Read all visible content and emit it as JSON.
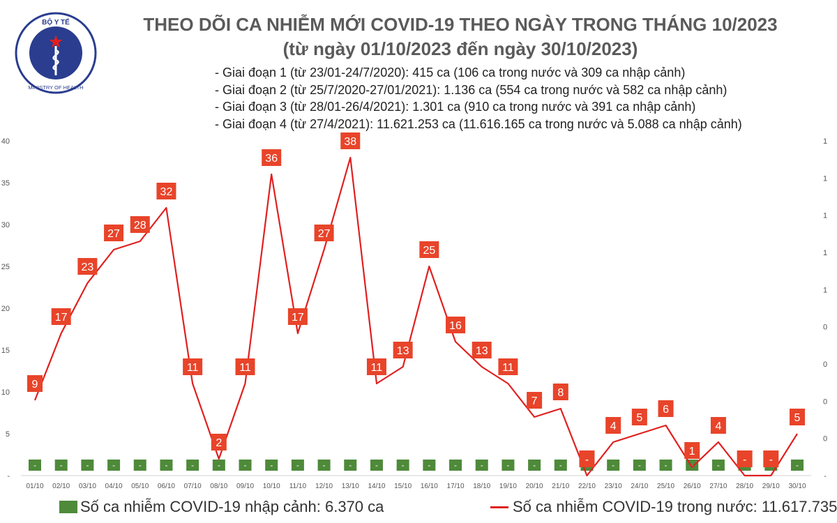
{
  "logo": {
    "top_text": "BỘ Y TẾ",
    "bottom_text": "MINISTRY OF HEALTH"
  },
  "header": {
    "title": "THEO DÕI CA NHIỄM MỚI COVID-19 THEO NGÀY TRONG THÁNG 10/2023",
    "subtitle": "(từ ngày 01/10/2023 đến ngày 30/10/2023)"
  },
  "stages": [
    "- Giai đoạn 1 (từ 23/01-24/7/2020): 415 ca (106 ca trong nước và 309 ca nhập cảnh)",
    "- Giai đoạn 2 (từ 25/7/2020-27/01/2021): 1.136 ca (554 ca trong nước và 582 ca nhập cảnh)",
    "- Giai đoạn 3 (từ 28/01-26/4/2021): 1.301 ca (910 ca trong nước và 391 ca nhập cảnh)",
    "- Giai đoạn 4 (từ 27/4/2021): 11.621.253 ca (11.616.165 ca trong nước và 5.088 ca nhập cảnh)"
  ],
  "legend": {
    "imported": "Số ca nhiễm COVID-19 nhập cảnh: 6.370 ca",
    "domestic": "Số ca nhiễm COVID-19 trong nước: 11.617.735 ca"
  },
  "colors": {
    "line": "#e02020",
    "label_bg": "#e8442a",
    "bar": "#4e8a3a",
    "axis_text": "#555555",
    "title": "#5a5a5a"
  },
  "chart_data": {
    "type": "line",
    "categories": [
      "01/10",
      "02/10",
      "03/10",
      "04/10",
      "05/10",
      "06/10",
      "07/10",
      "08/10",
      "09/10",
      "10/10",
      "11/10",
      "12/10",
      "13/10",
      "14/10",
      "15/10",
      "16/10",
      "17/10",
      "18/10",
      "19/10",
      "20/10",
      "21/10",
      "22/10",
      "23/10",
      "24/10",
      "25/10",
      "26/10",
      "27/10",
      "28/10",
      "29/10",
      "30/10"
    ],
    "series": [
      {
        "name": "Số ca nhiễm COVID-19 trong nước",
        "type": "line",
        "values": [
          9,
          17,
          23,
          27,
          28,
          32,
          11,
          2,
          11,
          36,
          17,
          27,
          38,
          11,
          13,
          25,
          16,
          13,
          11,
          7,
          8,
          0,
          4,
          5,
          6,
          1,
          4,
          0,
          0,
          5
        ],
        "value_labels": [
          "9",
          "17",
          "23",
          "27",
          "28",
          "32",
          "11",
          "2",
          "11",
          "36",
          "17",
          "27",
          "38",
          "11",
          "13",
          "25",
          "16",
          "13",
          "11",
          "7",
          "8",
          "-",
          "4",
          "5",
          "6",
          "1",
          "4",
          "-",
          "-",
          "5"
        ]
      },
      {
        "name": "Số ca nhiễm COVID-19 nhập cảnh",
        "type": "bar",
        "values": [
          0,
          0,
          0,
          0,
          0,
          0,
          0,
          0,
          0,
          0,
          0,
          0,
          0,
          0,
          0,
          0,
          0,
          0,
          0,
          0,
          0,
          0,
          0,
          0,
          0,
          0,
          0,
          0,
          0,
          0
        ],
        "value_labels": [
          "-",
          "-",
          "-",
          "-",
          "-",
          "-",
          "-",
          "-",
          "-",
          "-",
          "-",
          "-",
          "-",
          "-",
          "-",
          "-",
          "-",
          "-",
          "-",
          "-",
          "-",
          "-",
          "-",
          "-",
          "-",
          "-",
          "-",
          "-",
          "-",
          "-"
        ]
      }
    ],
    "y_left": {
      "ticks": [
        "-",
        "5",
        "10",
        "15",
        "20",
        "25",
        "30",
        "35",
        "40"
      ],
      "ylim": [
        0,
        40
      ]
    },
    "y_right": {
      "ticks": [
        "-",
        "0",
        "0",
        "0",
        "0",
        "1",
        "1",
        "1",
        "1",
        "1"
      ]
    },
    "grid": false,
    "legend_position": "bottom"
  }
}
